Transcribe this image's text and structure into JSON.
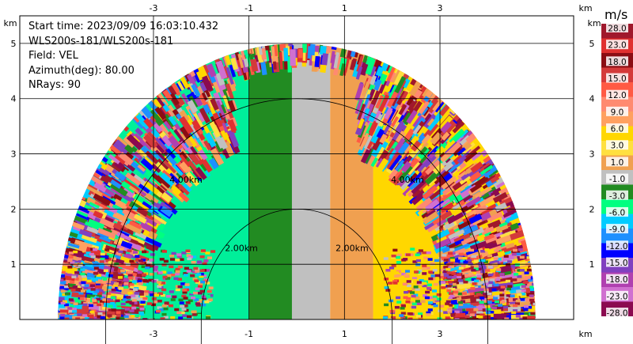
{
  "info": {
    "start_time": "Start time: 2023/09/09 16:03:10.432",
    "instrument": "WLS200s-181/WLS200s-181",
    "field": "Field: VEL",
    "azimuth": "Azimuth(deg): 80.00",
    "nrays": "NRays: 90"
  },
  "colorbar": {
    "unit": "m/s",
    "labels": [
      "28.0",
      "23.0",
      "18.0",
      "15.0",
      "12.0",
      "9.0",
      "6.0",
      "3.0",
      "1.0",
      "-1.0",
      "-3.0",
      "-6.0",
      "-9.0",
      "-12.0",
      "-15.0",
      "-18.0",
      "-23.0",
      "-28.0"
    ],
    "colors": [
      "#a0182c",
      "#e03030",
      "#8b0d14",
      "#d43a3a",
      "#ff5a44",
      "#ff8a70",
      "#ffa060",
      "#ffd700",
      "#ffe040",
      "#f0a050",
      "#c0c0c0",
      "#228b22",
      "#00ff80",
      "#00ccff",
      "#1e90ff",
      "#0000ff",
      "#8040c0",
      "#b040b0",
      "#d070d0",
      "#8b0a50"
    ]
  },
  "chart_data": {
    "type": "heatmap",
    "xlabel": "km",
    "ylabel": "km",
    "x_ticks": [
      -3,
      -1,
      1,
      3
    ],
    "y_ticks": [
      1,
      2,
      3,
      4,
      5
    ],
    "xlim": [
      -5.8,
      5.8
    ],
    "ylim": [
      0,
      5.5
    ],
    "range_rings_km": [
      2.0,
      4.0
    ],
    "range_ring_labels": [
      "2.00km",
      "4.00km"
    ],
    "max_range_km": 5.0,
    "sweep_deg": [
      0,
      180
    ],
    "grid": true,
    "bands": [
      {
        "name": "-3.0",
        "x_from": -1.0,
        "x_to": -0.1,
        "color": "#228b22"
      },
      {
        "name": "-1.0 to 1.0",
        "x_from": -0.1,
        "x_to": 0.7,
        "color": "#c0c0c0"
      },
      {
        "name": "3.0",
        "x_from": 0.7,
        "x_to": 1.6,
        "color": "#f0a050"
      }
    ]
  }
}
